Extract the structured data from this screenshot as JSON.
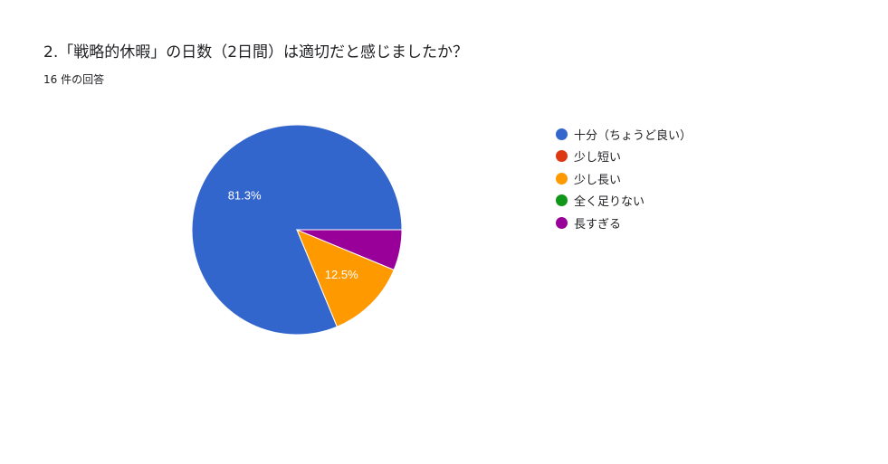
{
  "question": {
    "title": "2.「戦略的休暇」の日数（2日間）は適切だと感じましたか？",
    "response_count": "16 件の回答"
  },
  "chart_data": {
    "type": "pie",
    "slices": [
      {
        "label": "十分（ちょうど良い）",
        "count": 13,
        "percent": 81.3,
        "percent_label": "81.3%",
        "color": "#3366cc"
      },
      {
        "label": "少し短い",
        "count": 0,
        "percent": 0,
        "percent_label": "",
        "color": "#dc3912"
      },
      {
        "label": "少し長い",
        "count": 2,
        "percent": 12.5,
        "percent_label": "12.5%",
        "color": "#ff9900"
      },
      {
        "label": "全く足りない",
        "count": 0,
        "percent": 0,
        "percent_label": "",
        "color": "#109618"
      },
      {
        "label": "長すぎる",
        "count": 1,
        "percent": 6.3,
        "percent_label": "",
        "color": "#990099"
      }
    ],
    "legend_position": "right"
  }
}
